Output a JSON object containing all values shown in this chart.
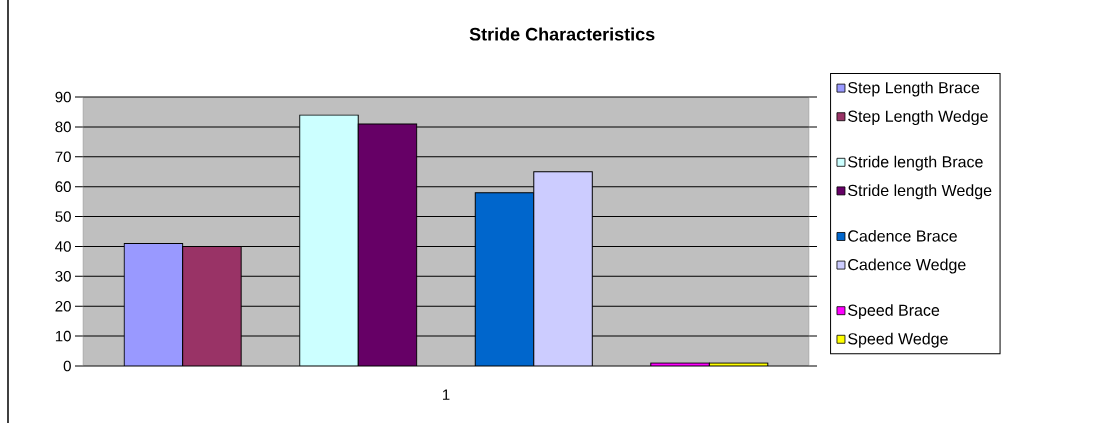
{
  "chart_data": {
    "type": "bar",
    "title": "Stride Characteristics",
    "categories": [
      "1"
    ],
    "series": [
      {
        "name": "Step Length Brace",
        "color": "#9999ff",
        "values": [
          41
        ]
      },
      {
        "name": "Step Length Wedge",
        "color": "#993366",
        "values": [
          40
        ]
      },
      {
        "values": [
          null
        ]
      },
      {
        "name": "Stride length Brace",
        "color": "#ccffff",
        "values": [
          84
        ]
      },
      {
        "name": "Stride length Wedge",
        "color": "#660066",
        "values": [
          81
        ]
      },
      {
        "values": [
          null
        ]
      },
      {
        "name": "Cadence Brace",
        "color": "#0066cc",
        "values": [
          58
        ]
      },
      {
        "name": "Cadence Wedge",
        "color": "#ccccff",
        "values": [
          65
        ]
      },
      {
        "values": [
          null
        ]
      },
      {
        "name": "Speed Brace",
        "color": "#ff00ff",
        "values": [
          1
        ]
      },
      {
        "name": "Speed Wedge",
        "color": "#ffff00",
        "values": [
          1
        ]
      }
    ],
    "ylim": [
      0,
      90
    ],
    "yticks": [
      0,
      10,
      20,
      30,
      40,
      50,
      60,
      70,
      80,
      90
    ],
    "grid": "y",
    "legend": "right"
  }
}
